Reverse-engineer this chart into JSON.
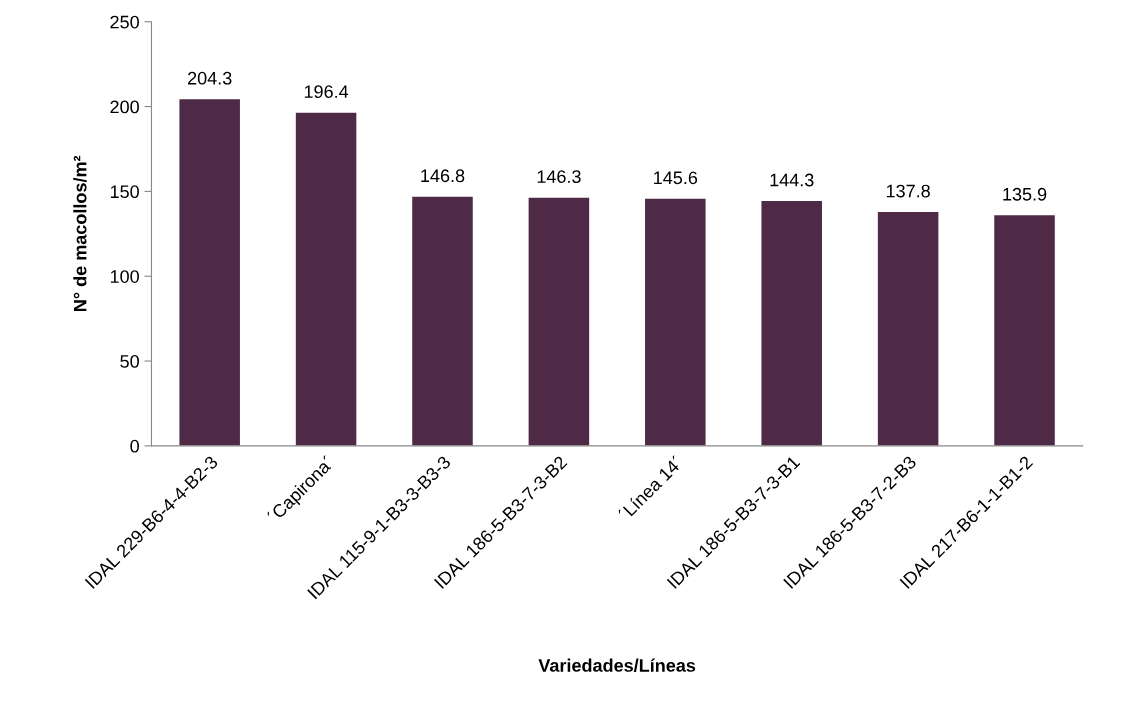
{
  "chart_data": {
    "type": "bar",
    "xlabel": "Variedades/Líneas",
    "ylabel": "N° de macollos/m²",
    "categories": [
      "IDAL 229-B6-4-4-B2-3",
      "´Capirona´",
      "IDAL 115-9-1-B3-3-B3-3",
      "IDAL 186-5-B3-7-3-B2",
      "´Línea 14´",
      "IDAL 186-5-B3-7-3-B1",
      "IDAL 186-5-B3-7-2-B3",
      "IDAL 217-B6-1-1-B1-2"
    ],
    "values": [
      204.3,
      196.4,
      146.8,
      146.3,
      145.6,
      144.3,
      137.8,
      135.9
    ],
    "color": "#4f2a47",
    "ylim": [
      0,
      250
    ],
    "yticks": [
      0,
      50,
      100,
      150,
      200,
      250
    ],
    "grid": false,
    "data_labels": true
  }
}
